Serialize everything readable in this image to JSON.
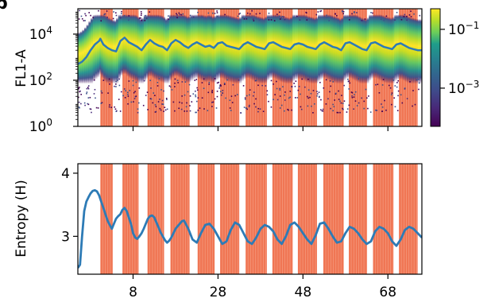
{
  "panel_label": "b",
  "colors": {
    "stripe": "#f07654",
    "line": "#2d7bb6",
    "viridis_dark": "#440154",
    "viridis_mid": "#21918c",
    "viridis_bright": "#fde725"
  },
  "chart_data": [
    {
      "type": "heatmap",
      "xlabel": "",
      "ylabel": "FL1-A",
      "yscale": "log",
      "xlim": [
        -5,
        76
      ],
      "ylim_exponents": [
        0,
        5.1
      ],
      "ytick_labels": [
        {
          "base": "10",
          "exp": "0",
          "value": 1
        },
        {
          "base": "10",
          "exp": "2",
          "value": 100
        },
        {
          "base": "10",
          "exp": "4",
          "value": 10000
        }
      ],
      "xticks": [
        8,
        28,
        48,
        68
      ],
      "colorbar": {
        "scale": "log",
        "colormap": "viridis",
        "tick_labels": [
          {
            "base": "10",
            "exp": "−1",
            "value": 0.1
          },
          {
            "base": "10",
            "exp": "−3",
            "value": 0.001
          }
        ]
      },
      "stripe_periods": [
        [
          0.3,
          3.2
        ],
        [
          5.5,
          9.3
        ],
        [
          11.4,
          15.3
        ],
        [
          16.8,
          21.3
        ],
        [
          23.2,
          27.2
        ],
        [
          28.5,
          33.0
        ],
        [
          34.5,
          39.5
        ],
        [
          40.8,
          45.6
        ],
        [
          46.8,
          51.3
        ],
        [
          52.8,
          57.6
        ],
        [
          58.8,
          63.1
        ],
        [
          64.5,
          69.3
        ],
        [
          70.6,
          75.0
        ]
      ],
      "median_curve": {
        "x": [
          -5,
          -4,
          -3,
          -2,
          -1,
          0,
          0.3,
          1,
          2,
          3,
          4,
          5,
          6,
          7,
          8,
          9,
          10,
          11,
          12,
          13,
          14,
          15,
          16,
          17,
          18,
          19,
          20,
          21,
          22,
          23,
          24,
          25,
          26,
          27,
          28,
          29,
          30,
          31,
          32,
          33,
          34,
          35,
          36,
          37,
          38,
          39,
          40,
          41,
          42,
          43,
          44,
          45,
          46,
          47,
          48,
          49,
          50,
          51,
          52,
          53,
          54,
          55,
          56,
          57,
          58,
          59,
          60,
          61,
          62,
          63,
          64,
          65,
          66,
          67,
          68,
          69,
          70,
          71,
          72,
          73,
          74,
          75,
          76
        ],
        "y_log10": [
          2.7,
          2.8,
          3.0,
          3.3,
          3.55,
          3.7,
          3.8,
          3.55,
          3.4,
          3.3,
          3.25,
          3.7,
          3.85,
          3.65,
          3.55,
          3.45,
          3.3,
          3.55,
          3.75,
          3.6,
          3.5,
          3.45,
          3.3,
          3.6,
          3.75,
          3.65,
          3.5,
          3.4,
          3.55,
          3.65,
          3.55,
          3.45,
          3.5,
          3.4,
          3.6,
          3.65,
          3.5,
          3.45,
          3.4,
          3.35,
          3.55,
          3.65,
          3.55,
          3.45,
          3.4,
          3.35,
          3.6,
          3.65,
          3.55,
          3.45,
          3.4,
          3.35,
          3.55,
          3.6,
          3.55,
          3.45,
          3.4,
          3.35,
          3.55,
          3.65,
          3.55,
          3.45,
          3.4,
          3.3,
          3.6,
          3.65,
          3.55,
          3.45,
          3.35,
          3.3,
          3.6,
          3.65,
          3.55,
          3.45,
          3.4,
          3.35,
          3.55,
          3.6,
          3.5,
          3.4,
          3.35,
          3.3,
          3.3
        ]
      }
    },
    {
      "type": "line",
      "xlabel": "",
      "ylabel": "Entropy (H)",
      "xlim": [
        -5,
        76
      ],
      "ylim": [
        2.4,
        4.15
      ],
      "yticks": [
        3,
        4
      ],
      "xticks": [
        8,
        28,
        48,
        68
      ],
      "xtick_labels": [
        "8",
        "28",
        "48",
        "68"
      ],
      "series": [
        {
          "x": [
            -5,
            -4.5,
            -4,
            -3.5,
            -3,
            -2.5,
            -2,
            -1.5,
            -1,
            -0.5,
            0,
            0.5,
            1,
            1.5,
            2,
            2.5,
            3,
            3.5,
            4,
            4.5,
            5,
            5.5,
            6,
            6.5,
            7,
            7.5,
            8,
            8.5,
            9,
            9.5,
            10,
            10.5,
            11,
            11.5,
            12,
            12.5,
            13,
            13.5,
            14,
            14.5,
            15,
            15.5,
            16,
            16.5,
            17,
            17.5,
            18,
            18.5,
            19,
            19.5,
            20,
            21,
            22,
            23,
            24,
            25,
            26,
            27,
            28,
            29,
            30,
            31,
            32,
            33,
            34,
            35,
            36,
            37,
            38,
            39,
            40,
            41,
            42,
            43,
            44,
            45,
            46,
            47,
            48,
            49,
            50,
            51,
            52,
            53,
            54,
            55,
            56,
            57,
            58,
            59,
            60,
            61,
            62,
            63,
            64,
            65,
            66,
            67,
            68,
            69,
            70,
            71,
            72,
            73,
            74,
            75,
            76
          ],
          "y": [
            2.5,
            2.55,
            3.0,
            3.4,
            3.55,
            3.62,
            3.68,
            3.72,
            3.73,
            3.71,
            3.65,
            3.55,
            3.45,
            3.35,
            3.25,
            3.18,
            3.12,
            3.2,
            3.28,
            3.32,
            3.35,
            3.42,
            3.45,
            3.4,
            3.3,
            3.2,
            3.05,
            2.98,
            2.96,
            3.0,
            3.05,
            3.12,
            3.2,
            3.28,
            3.32,
            3.33,
            3.3,
            3.22,
            3.14,
            3.06,
            3.0,
            2.94,
            2.9,
            2.93,
            2.98,
            3.05,
            3.12,
            3.16,
            3.2,
            3.24,
            3.25,
            3.12,
            2.95,
            2.9,
            3.05,
            3.18,
            3.2,
            3.12,
            3.0,
            2.88,
            2.92,
            3.1,
            3.22,
            3.18,
            3.05,
            2.92,
            2.88,
            2.98,
            3.12,
            3.18,
            3.15,
            3.08,
            2.95,
            2.88,
            3.0,
            3.18,
            3.22,
            3.15,
            3.05,
            2.95,
            2.88,
            3.02,
            3.2,
            3.22,
            3.12,
            3.0,
            2.9,
            2.92,
            3.05,
            3.15,
            3.12,
            3.05,
            2.95,
            2.88,
            2.92,
            3.08,
            3.15,
            3.12,
            3.05,
            2.92,
            2.85,
            2.95,
            3.1,
            3.15,
            3.12,
            3.05,
            2.98
          ]
        }
      ]
    }
  ]
}
